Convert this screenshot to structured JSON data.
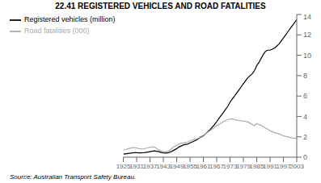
{
  "chart_data": {
    "type": "line",
    "title": "22.41   REGISTERED VEHICLES AND ROAD FATALITIES",
    "annotations": [
      "Source: Australian Transport Safety Bureau."
    ],
    "x": [
      1925,
      1926,
      1927,
      1928,
      1929,
      1930,
      1931,
      1932,
      1933,
      1934,
      1935,
      1936,
      1937,
      1938,
      1939,
      1940,
      1941,
      1942,
      1943,
      1944,
      1945,
      1946,
      1947,
      1948,
      1949,
      1950,
      1951,
      1952,
      1953,
      1954,
      1955,
      1956,
      1957,
      1958,
      1959,
      1960,
      1961,
      1962,
      1963,
      1964,
      1965,
      1966,
      1967,
      1968,
      1969,
      1970,
      1971,
      1972,
      1973,
      1974,
      1975,
      1976,
      1977,
      1978,
      1979,
      1980,
      1981,
      1982,
      1983,
      1984,
      1985,
      1986,
      1987,
      1988,
      1989,
      1990,
      1991,
      1992,
      1993,
      1994,
      1995,
      1996,
      1997,
      1998,
      1999,
      2000,
      2001,
      2002,
      2003
    ],
    "series": [
      {
        "name": "Registered vehicles (million)",
        "color": "#000000",
        "values": [
          0.3,
          0.33,
          0.36,
          0.39,
          0.42,
          0.44,
          0.44,
          0.43,
          0.42,
          0.44,
          0.47,
          0.51,
          0.55,
          0.59,
          0.62,
          0.58,
          0.54,
          0.46,
          0.42,
          0.4,
          0.42,
          0.5,
          0.6,
          0.72,
          0.84,
          1.0,
          1.1,
          1.2,
          1.25,
          1.3,
          1.4,
          1.5,
          1.6,
          1.7,
          1.85,
          2.0,
          2.1,
          2.3,
          2.5,
          2.7,
          2.95,
          3.2,
          3.5,
          3.8,
          4.1,
          4.4,
          4.7,
          5.0,
          5.4,
          5.7,
          6.0,
          6.3,
          6.6,
          6.9,
          7.2,
          7.5,
          7.8,
          8.0,
          8.2,
          8.5,
          9.0,
          9.3,
          9.7,
          10.1,
          10.4,
          10.5,
          10.5,
          10.6,
          10.7,
          10.9,
          11.1,
          11.4,
          11.7,
          12.0,
          12.3,
          12.6,
          12.9,
          13.2,
          13.5
        ]
      },
      {
        "name": "Road fatalities (000)",
        "color": "#aaaaaa",
        "values": [
          0.7,
          0.75,
          0.82,
          0.88,
          0.92,
          0.95,
          0.9,
          0.85,
          0.8,
          0.82,
          0.87,
          0.93,
          0.97,
          1.0,
          1.0,
          0.85,
          0.72,
          0.6,
          0.55,
          0.52,
          0.58,
          0.7,
          0.9,
          1.05,
          1.18,
          1.3,
          1.38,
          1.4,
          1.45,
          1.5,
          1.6,
          1.7,
          1.75,
          1.8,
          1.9,
          2.05,
          2.15,
          2.3,
          2.45,
          2.6,
          2.75,
          2.95,
          3.1,
          3.2,
          3.35,
          3.5,
          3.6,
          3.7,
          3.75,
          3.75,
          3.7,
          3.65,
          3.6,
          3.55,
          3.55,
          3.5,
          3.45,
          3.35,
          3.2,
          3.1,
          3.3,
          3.2,
          3.1,
          3.0,
          2.85,
          2.75,
          2.6,
          2.5,
          2.4,
          2.35,
          2.3,
          2.2,
          2.1,
          2.05,
          2.0,
          1.95,
          1.9,
          1.85,
          1.85
        ]
      }
    ],
    "xlim": [
      1925,
      2003
    ],
    "xticks": [
      1925,
      1931,
      1937,
      1943,
      1949,
      1955,
      1961,
      1967,
      1973,
      1979,
      1985,
      1991,
      1997,
      2003
    ],
    "ylim": [
      0,
      14
    ],
    "yticks": [
      0,
      2,
      4,
      6,
      8,
      10,
      12,
      14
    ],
    "grid": false,
    "legend": "top"
  }
}
